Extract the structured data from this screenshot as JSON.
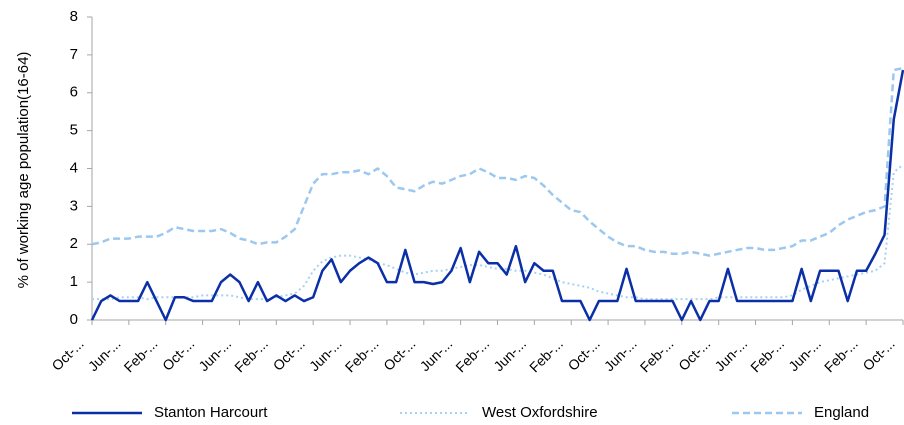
{
  "chart_data": {
    "type": "line",
    "y_label": "% of working age population(16-64)",
    "categories": [
      "Oct-...",
      null,
      null,
      null,
      "Jun-...",
      null,
      null,
      null,
      "Feb-...",
      null,
      null,
      null,
      "Oct-...",
      null,
      null,
      null,
      "Jun-...",
      null,
      null,
      null,
      "Feb-...",
      null,
      null,
      null,
      "Oct-...",
      null,
      null,
      null,
      "Jun-...",
      null,
      null,
      null,
      "Feb-...",
      null,
      null,
      null,
      "Oct-...",
      null,
      null,
      null,
      "Jun-...",
      null,
      null,
      null,
      "Feb-...",
      null,
      null,
      null,
      "Jun-...",
      null,
      null,
      null,
      "Feb-...",
      null,
      null,
      null,
      "Oct-...",
      null,
      null,
      null,
      "Jun-...",
      null,
      null,
      null,
      "Feb-...",
      null,
      null,
      null,
      "Oct-...",
      null,
      null,
      null,
      "Jun-...",
      null,
      null,
      null,
      "Feb-...",
      null,
      null,
      null,
      "Jun-...",
      null,
      null,
      null,
      "Feb-...",
      null,
      null,
      null,
      "Oct-..."
    ],
    "series": [
      {
        "name": "Stanton Harcourt",
        "color": "#0a2fa6",
        "line_style": "solid",
        "values": [
          0,
          0.5,
          0.65,
          0.5,
          0.5,
          0.5,
          1.0,
          0.5,
          0,
          0.6,
          0.6,
          0.5,
          0.5,
          0.5,
          1.0,
          1.2,
          1.0,
          0.5,
          1.0,
          0.5,
          0.65,
          0.5,
          0.65,
          0.5,
          0.6,
          1.3,
          1.6,
          1.0,
          1.3,
          1.5,
          1.65,
          1.5,
          1.0,
          1.0,
          1.85,
          1.0,
          1.0,
          0.95,
          1.0,
          1.3,
          1.9,
          1.0,
          1.8,
          1.5,
          1.5,
          1.2,
          1.95,
          1.0,
          1.5,
          1.3,
          1.3,
          0.5,
          0.5,
          0.5,
          0,
          0.5,
          0.5,
          0.5,
          1.35,
          0.5,
          0.5,
          0.5,
          0.5,
          0.5,
          0,
          0.5,
          0,
          0.5,
          0.5,
          1.35,
          0.5,
          0.5,
          0.5,
          0.5,
          0.5,
          0.5,
          0.5,
          1.35,
          0.5,
          1.3,
          1.3,
          1.3,
          0.5,
          1.3,
          1.3,
          1.75,
          2.25,
          5.3,
          6.6
        ]
      },
      {
        "name": "West Oxfordshire",
        "color": "#a8d0f2",
        "line_style": "dotted",
        "values": [
          0.55,
          0.55,
          0.55,
          0.6,
          0.6,
          0.6,
          0.55,
          0.6,
          0.6,
          0.6,
          0.6,
          0.6,
          0.65,
          0.65,
          0.65,
          0.65,
          0.6,
          0.55,
          0.55,
          0.55,
          0.6,
          0.65,
          0.7,
          0.9,
          1.3,
          1.55,
          1.65,
          1.7,
          1.7,
          1.65,
          1.6,
          1.5,
          1.45,
          1.35,
          1.25,
          1.2,
          1.25,
          1.3,
          1.3,
          1.35,
          1.4,
          1.45,
          1.45,
          1.4,
          1.35,
          1.35,
          1.3,
          1.3,
          1.25,
          1.2,
          1.1,
          1.0,
          0.95,
          0.9,
          0.85,
          0.75,
          0.7,
          0.65,
          0.6,
          0.6,
          0.55,
          0.55,
          0.55,
          0.55,
          0.55,
          0.55,
          0.55,
          0.55,
          0.6,
          0.6,
          0.6,
          0.6,
          0.6,
          0.6,
          0.6,
          0.6,
          0.65,
          0.8,
          0.9,
          1.0,
          1.05,
          1.1,
          1.15,
          1.2,
          1.25,
          1.3,
          1.5,
          3.9,
          4.1
        ]
      },
      {
        "name": "England",
        "color": "#9cc8f0",
        "line_style": "dashed",
        "values": [
          2.0,
          2.05,
          2.15,
          2.15,
          2.15,
          2.2,
          2.2,
          2.2,
          2.3,
          2.45,
          2.4,
          2.35,
          2.35,
          2.35,
          2.4,
          2.3,
          2.15,
          2.1,
          2.0,
          2.05,
          2.05,
          2.2,
          2.4,
          3.0,
          3.6,
          3.85,
          3.85,
          3.9,
          3.9,
          3.95,
          3.85,
          4.0,
          3.8,
          3.5,
          3.45,
          3.4,
          3.55,
          3.65,
          3.6,
          3.7,
          3.8,
          3.85,
          4.0,
          3.9,
          3.75,
          3.75,
          3.7,
          3.8,
          3.75,
          3.55,
          3.3,
          3.1,
          2.9,
          2.85,
          2.6,
          2.4,
          2.2,
          2.05,
          1.95,
          1.95,
          1.85,
          1.8,
          1.8,
          1.75,
          1.75,
          1.8,
          1.75,
          1.7,
          1.75,
          1.8,
          1.85,
          1.9,
          1.9,
          1.85,
          1.85,
          1.9,
          1.95,
          2.1,
          2.1,
          2.2,
          2.3,
          2.5,
          2.65,
          2.75,
          2.85,
          2.9,
          3.0,
          6.6,
          6.65
        ]
      }
    ],
    "ylim": [
      0,
      8
    ],
    "yticks": [
      0,
      1,
      2,
      3,
      4,
      5,
      6,
      7,
      8
    ],
    "grid": false,
    "legend": "bottom"
  }
}
